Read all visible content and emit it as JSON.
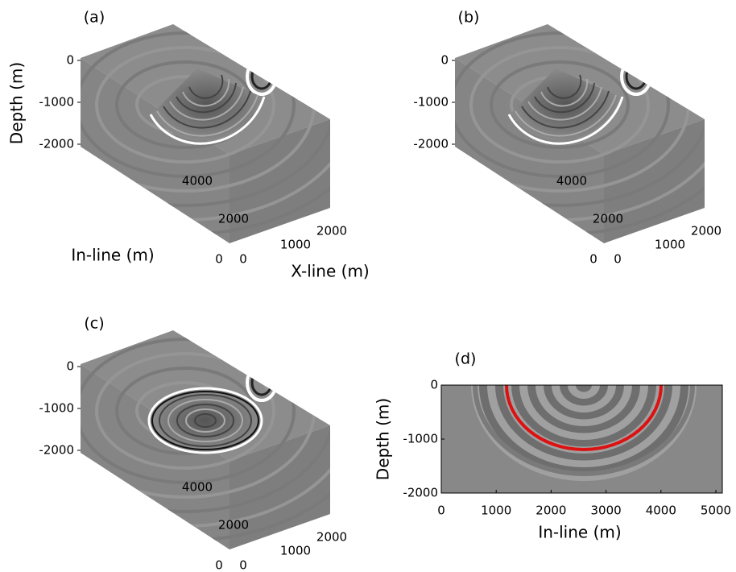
{
  "panels": [
    {
      "label": "(a)",
      "depth_title": "Depth (m)",
      "inline_title": "In-line (m)",
      "xline_title": "X-line (m)",
      "depth_ticks": [
        0,
        -1000,
        -2000
      ],
      "inline_ticks": [
        4000,
        2000,
        0
      ],
      "xline_ticks": [
        0,
        1000,
        2000
      ]
    },
    {
      "label": "(b)",
      "depth_ticks": [
        0,
        -1000,
        -2000
      ],
      "inline_ticks": [
        4000,
        2000,
        0
      ],
      "xline_ticks": [
        0,
        1000,
        2000
      ]
    },
    {
      "label": "(c)",
      "depth_ticks": [
        0,
        -1000,
        -2000
      ],
      "inline_ticks": [
        4000,
        2000,
        0
      ],
      "xline_ticks": [
        0,
        1000,
        2000
      ]
    },
    {
      "label": "(d)",
      "y_title": "Depth (m)",
      "x_title": "In-line (m)",
      "yticks": [
        0,
        -1000,
        -2000
      ],
      "xticks": [
        0,
        1000,
        2000,
        3000,
        4000,
        5000
      ]
    }
  ]
}
